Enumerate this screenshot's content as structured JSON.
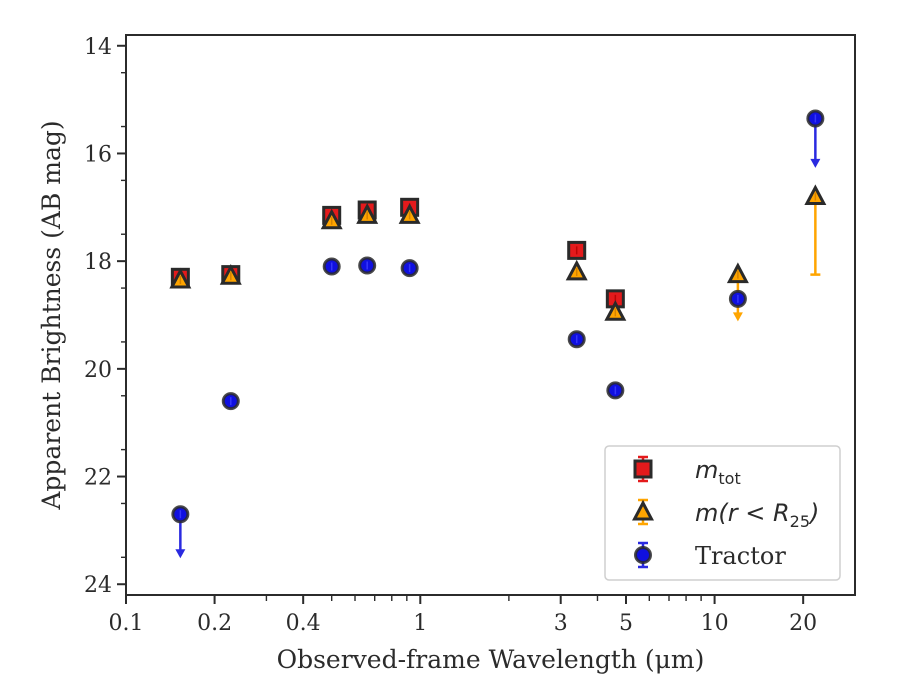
{
  "chart_data": {
    "type": "scatter",
    "xlabel": "Observed-frame Wavelength (μm)",
    "ylabel": "Apparent Brightness (AB mag)",
    "xscale": "log",
    "xlim": [
      0.1,
      30
    ],
    "ylim": [
      24.2,
      13.8
    ],
    "y_inverted": true,
    "x_ticks": [
      0.1,
      0.2,
      0.4,
      1,
      3,
      5,
      10,
      20
    ],
    "x_tick_labels": [
      "0.1",
      "0.2",
      "0.4",
      "1",
      "3",
      "5",
      "10",
      "20"
    ],
    "y_ticks": [
      14,
      16,
      18,
      20,
      22,
      24
    ],
    "y_tick_labels": [
      "14",
      "16",
      "18",
      "20",
      "22",
      "24"
    ],
    "grid": false,
    "legend_position": "lower-right",
    "series": [
      {
        "name": "m_tot",
        "legend_main": "m",
        "legend_sub": "tot",
        "marker": "square",
        "color": "#e41a1c",
        "edgecolor": "#2a2a2a",
        "points": [
          {
            "x": 0.153,
            "y": 18.3
          },
          {
            "x": 0.227,
            "y": 18.25
          },
          {
            "x": 0.5,
            "y": 17.15
          },
          {
            "x": 0.66,
            "y": 17.05
          },
          {
            "x": 0.92,
            "y": 17.0
          },
          {
            "x": 3.4,
            "y": 17.8
          },
          {
            "x": 4.6,
            "y": 18.7
          }
        ]
      },
      {
        "name": "m(r < R25)",
        "legend_main": "m(r < R",
        "legend_sub": "25",
        "legend_close": ")",
        "marker": "triangle",
        "color": "#ffa500",
        "edgecolor": "#2a2a2a",
        "points": [
          {
            "x": 0.153,
            "y": 18.35
          },
          {
            "x": 0.227,
            "y": 18.28
          },
          {
            "x": 0.5,
            "y": 17.25
          },
          {
            "x": 0.66,
            "y": 17.15
          },
          {
            "x": 0.92,
            "y": 17.15
          },
          {
            "x": 3.4,
            "y": 18.2
          },
          {
            "x": 4.6,
            "y": 18.95
          },
          {
            "x": 12.0,
            "y": 18.25,
            "upper_limit": true,
            "arrow_to": 19.1
          },
          {
            "x": 22.0,
            "y": 16.8,
            "err_low": 16.7,
            "err_high": 18.25
          }
        ]
      },
      {
        "name": "Tractor",
        "marker": "circle",
        "color": "#1010e0",
        "edgecolor": "#2a2a2a",
        "points": [
          {
            "x": 0.153,
            "y": 22.7,
            "upper_limit": true,
            "arrow_to": 23.5
          },
          {
            "x": 0.227,
            "y": 20.6
          },
          {
            "x": 0.5,
            "y": 18.1
          },
          {
            "x": 0.66,
            "y": 18.08
          },
          {
            "x": 0.92,
            "y": 18.13
          },
          {
            "x": 3.4,
            "y": 19.45
          },
          {
            "x": 4.6,
            "y": 20.4
          },
          {
            "x": 12.0,
            "y": 18.7
          },
          {
            "x": 22.0,
            "y": 15.35,
            "upper_limit": true,
            "arrow_to": 16.25
          }
        ]
      }
    ]
  }
}
